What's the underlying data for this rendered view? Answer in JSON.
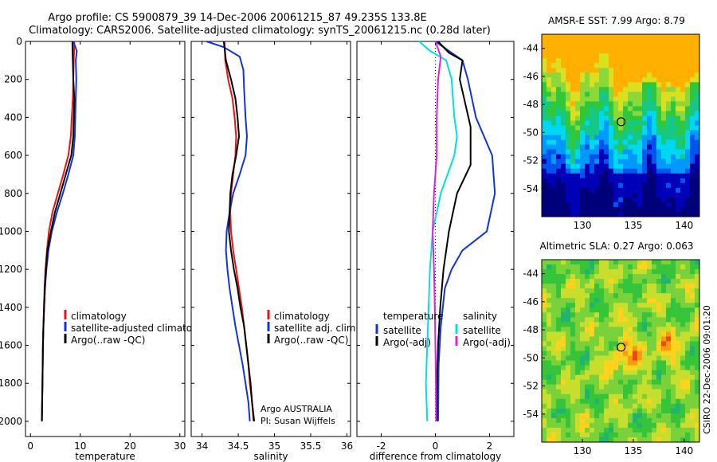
{
  "figure": {
    "title_line1": "Argo profile: CS 5900879_39 14-Dec-2006 20061215_87 49.235S 133.8E",
    "title_line2": "Climatology: CARS2006. Satellite-adjusted climatology: synTS_20061215.nc (0.28d later)",
    "credit": "CSIRO 22-Dec-2006 09:01:20"
  },
  "chart_data": [
    {
      "type": "line",
      "id": "temperature",
      "xlabel": "temperature",
      "ylabel": "",
      "xlim": [
        -1,
        31
      ],
      "ylim": [
        2080,
        0
      ],
      "xticks": [
        0,
        10,
        20,
        30
      ],
      "yticks": [
        0,
        200,
        400,
        600,
        800,
        1000,
        1200,
        1400,
        1600,
        1800,
        2000
      ],
      "legend": {
        "placement": "bottom-right",
        "entries": [
          {
            "label": "climatology",
            "color": "#ee1111"
          },
          {
            "label": "satellite-adjusted climatology",
            "color": "#1133dd"
          },
          {
            "label": "Argo(..raw -QC)",
            "color": "#000000"
          }
        ]
      },
      "series": [
        {
          "name": "climatology",
          "color": "#ee1111",
          "points": [
            [
              8.8,
              0
            ],
            [
              8.7,
              100
            ],
            [
              8.6,
              200
            ],
            [
              8.5,
              300
            ],
            [
              8.3,
              400
            ],
            [
              8.1,
              500
            ],
            [
              7.6,
              600
            ],
            [
              6.6,
              700
            ],
            [
              5.5,
              800
            ],
            [
              4.4,
              900
            ],
            [
              3.7,
              1000
            ],
            [
              3.3,
              1100
            ],
            [
              3.0,
              1200
            ],
            [
              2.8,
              1300
            ],
            [
              2.7,
              1400
            ],
            [
              2.6,
              1500
            ],
            [
              2.5,
              1600
            ],
            [
              2.45,
              1700
            ],
            [
              2.4,
              1800
            ],
            [
              2.35,
              1900
            ],
            [
              2.3,
              2000
            ]
          ]
        },
        {
          "name": "satellite-adjusted climatology",
          "color": "#1133dd",
          "points": [
            [
              8.6,
              0
            ],
            [
              9.3,
              50
            ],
            [
              9.1,
              100
            ],
            [
              9.2,
              200
            ],
            [
              9.1,
              300
            ],
            [
              9.0,
              400
            ],
            [
              8.9,
              500
            ],
            [
              8.6,
              600
            ],
            [
              7.6,
              700
            ],
            [
              6.5,
              800
            ],
            [
              5.3,
              900
            ],
            [
              4.3,
              1000
            ],
            [
              3.6,
              1100
            ],
            [
              3.2,
              1200
            ],
            [
              2.9,
              1300
            ],
            [
              2.75,
              1400
            ],
            [
              2.6,
              1500
            ],
            [
              2.5,
              1600
            ],
            [
              2.45,
              1700
            ],
            [
              2.4,
              1800
            ],
            [
              2.35,
              1900
            ],
            [
              2.3,
              2000
            ]
          ]
        },
        {
          "name": "Argo(..raw -QC)",
          "color": "#000000",
          "points": [
            [
              8.4,
              0
            ],
            [
              8.5,
              100
            ],
            [
              8.6,
              200
            ],
            [
              8.8,
              300
            ],
            [
              8.7,
              400
            ],
            [
              8.6,
              500
            ],
            [
              8.2,
              600
            ],
            [
              7.1,
              700
            ],
            [
              6.0,
              800
            ],
            [
              4.9,
              900
            ],
            [
              4.1,
              1000
            ],
            [
              3.4,
              1100
            ],
            [
              3.1,
              1200
            ],
            [
              2.9,
              1300
            ],
            [
              2.75,
              1400
            ],
            [
              2.6,
              1500
            ],
            [
              2.5,
              1600
            ],
            [
              2.45,
              1700
            ],
            [
              2.4,
              1800
            ],
            [
              2.35,
              1900
            ],
            [
              2.3,
              2000
            ]
          ]
        }
      ]
    },
    {
      "type": "line",
      "id": "salinity",
      "xlabel": "salinity",
      "ylabel": "",
      "xlim": [
        33.85,
        36.05
      ],
      "ylim": [
        2080,
        0
      ],
      "xticks": [
        34,
        34.5,
        35,
        35.5,
        36
      ],
      "yticks": [
        0,
        200,
        400,
        600,
        800,
        1000,
        1200,
        1400,
        1600,
        1800,
        2000
      ],
      "legend": {
        "placement": "bottom-right",
        "entries": [
          {
            "label": "climatology",
            "color": "#ee1111"
          },
          {
            "label": "satellite adj. clim.",
            "color": "#1133dd"
          },
          {
            "label": "Argo(..raw -QC)",
            "color": "#000000"
          }
        ]
      },
      "annotations": [
        "Argo AUSTRALIA",
        "PI: Susan Wijffels"
      ],
      "series": [
        {
          "name": "climatology",
          "color": "#ee1111",
          "points": [
            [
              34.31,
              0
            ],
            [
              34.32,
              100
            ],
            [
              34.36,
              200
            ],
            [
              34.42,
              300
            ],
            [
              34.45,
              400
            ],
            [
              34.47,
              500
            ],
            [
              34.46,
              600
            ],
            [
              34.43,
              700
            ],
            [
              34.4,
              800
            ],
            [
              34.39,
              900
            ],
            [
              34.4,
              1000
            ],
            [
              34.43,
              1100
            ],
            [
              34.47,
              1200
            ],
            [
              34.51,
              1300
            ],
            [
              34.55,
              1400
            ],
            [
              34.58,
              1500
            ],
            [
              34.61,
              1600
            ],
            [
              34.64,
              1700
            ],
            [
              34.66,
              1800
            ],
            [
              34.69,
              1900
            ],
            [
              34.71,
              2000
            ]
          ]
        },
        {
          "name": "satellite adj. clim.",
          "color": "#1133dd",
          "points": [
            [
              34.06,
              0
            ],
            [
              34.3,
              30
            ],
            [
              34.52,
              80
            ],
            [
              34.57,
              150
            ],
            [
              34.58,
              250
            ],
            [
              34.6,
              400
            ],
            [
              34.62,
              500
            ],
            [
              34.6,
              600
            ],
            [
              34.52,
              700
            ],
            [
              34.43,
              800
            ],
            [
              34.38,
              900
            ],
            [
              34.34,
              1000
            ],
            [
              34.33,
              1100
            ],
            [
              34.35,
              1200
            ],
            [
              34.38,
              1300
            ],
            [
              34.42,
              1400
            ],
            [
              34.46,
              1500
            ],
            [
              34.51,
              1600
            ],
            [
              34.56,
              1700
            ],
            [
              34.6,
              1800
            ],
            [
              34.64,
              1900
            ],
            [
              34.66,
              2000
            ]
          ]
        },
        {
          "name": "Argo(..raw -QC)",
          "color": "#000000",
          "points": [
            [
              34.3,
              0
            ],
            [
              34.33,
              100
            ],
            [
              34.4,
              200
            ],
            [
              34.46,
              300
            ],
            [
              34.49,
              400
            ],
            [
              34.51,
              500
            ],
            [
              34.47,
              600
            ],
            [
              34.42,
              700
            ],
            [
              34.39,
              800
            ],
            [
              34.38,
              900
            ],
            [
              34.37,
              1000
            ],
            [
              34.4,
              1100
            ],
            [
              34.44,
              1200
            ],
            [
              34.49,
              1300
            ],
            [
              34.53,
              1400
            ],
            [
              34.58,
              1500
            ],
            [
              34.61,
              1600
            ],
            [
              34.64,
              1700
            ],
            [
              34.67,
              1800
            ],
            [
              34.69,
              1900
            ],
            [
              34.72,
              2000
            ]
          ]
        }
      ]
    },
    {
      "type": "line",
      "id": "difference",
      "xlabel": "difference from climatology",
      "ylabel": "",
      "xlim": [
        -2.9,
        2.9
      ],
      "ylim": [
        2080,
        0
      ],
      "xticks": [
        -2,
        0,
        2
      ],
      "yticks": [
        0,
        200,
        400,
        600,
        800,
        1000,
        1200,
        1400,
        1600,
        1800,
        2000
      ],
      "zero_line": true,
      "legend": {
        "placement": "bottom-right",
        "groups": [
          {
            "heading": "temperature",
            "entries": [
              {
                "label": "satellite",
                "color": "#1133dd"
              },
              {
                "label": "Argo(-adj)",
                "color": "#000000"
              }
            ]
          },
          {
            "heading": "salinity",
            "entries": [
              {
                "label": "satellite",
                "color": "#00e0e0"
              },
              {
                "label": "Argo(-adj)",
                "color": "#dd22dd"
              }
            ]
          }
        ]
      },
      "series": [
        {
          "name": "temperature satellite",
          "color": "#1133dd",
          "points": [
            [
              0.0,
              0
            ],
            [
              0.6,
              60
            ],
            [
              1.0,
              100
            ],
            [
              1.2,
              200
            ],
            [
              1.5,
              400
            ],
            [
              2.1,
              600
            ],
            [
              2.2,
              800
            ],
            [
              1.9,
              1000
            ],
            [
              1.0,
              1100
            ],
            [
              0.6,
              1200
            ],
            [
              0.35,
              1300
            ],
            [
              0.2,
              1500
            ],
            [
              0.12,
              1700
            ],
            [
              0.1,
              2000
            ]
          ]
        },
        {
          "name": "temperature Argo(-adj)",
          "color": "#000000",
          "points": [
            [
              0.1,
              0
            ],
            [
              0.5,
              60
            ],
            [
              1.0,
              100
            ],
            [
              0.9,
              200
            ],
            [
              1.3,
              450
            ],
            [
              1.3,
              650
            ],
            [
              0.8,
              800
            ],
            [
              0.5,
              1000
            ],
            [
              0.3,
              1200
            ],
            [
              0.18,
              1400
            ],
            [
              0.1,
              1600
            ],
            [
              0.06,
              1800
            ],
            [
              0.05,
              2000
            ]
          ]
        },
        {
          "name": "salinity satellite",
          "color": "#00e0e0",
          "points": [
            [
              -0.6,
              0
            ],
            [
              -0.2,
              50
            ],
            [
              0.4,
              100
            ],
            [
              0.6,
              200
            ],
            [
              0.7,
              400
            ],
            [
              0.8,
              500
            ],
            [
              0.7,
              600
            ],
            [
              0.2,
              800
            ],
            [
              -0.1,
              1000
            ],
            [
              -0.2,
              1200
            ],
            [
              -0.25,
              1400
            ],
            [
              -0.3,
              1600
            ],
            [
              -0.35,
              1800
            ],
            [
              -0.3,
              2000
            ]
          ]
        },
        {
          "name": "salinity Argo(-adj)",
          "color": "#dd22dd",
          "points": [
            [
              0.0,
              0
            ],
            [
              0.2,
              80
            ],
            [
              0.1,
              200
            ],
            [
              0.05,
              400
            ],
            [
              0.05,
              600
            ],
            [
              -0.05,
              800
            ],
            [
              -0.1,
              1000
            ],
            [
              -0.05,
              1200
            ],
            [
              -0.02,
              1400
            ],
            [
              0.0,
              1600
            ],
            [
              0.02,
              1800
            ],
            [
              0.03,
              2000
            ]
          ]
        }
      ]
    },
    {
      "type": "heatmap",
      "id": "sst",
      "title": "AMSR-E SST: 7.99 Argo: 8.79",
      "xlim": [
        126,
        141.5
      ],
      "ylim": [
        -56,
        -43
      ],
      "xticks": [
        130,
        135,
        140
      ],
      "yticks": [
        -44,
        -46,
        -48,
        -50,
        -52,
        -54
      ],
      "marker": {
        "lon": 133.8,
        "lat": -49.235
      },
      "colors": [
        "#00007a",
        "#0000b8",
        "#0055ee",
        "#0099ff",
        "#00d8f0",
        "#16c886",
        "#2ec83a",
        "#8cd83a",
        "#d8e020",
        "#ffb000"
      ]
    },
    {
      "type": "heatmap",
      "id": "sla",
      "title": "Altimetric SLA: 0.27 Argo: 0.063",
      "xlim": [
        126,
        141.5
      ],
      "ylim": [
        -56,
        -43
      ],
      "xticks": [
        130,
        135,
        140
      ],
      "yticks": [
        -44,
        -46,
        -48,
        -50,
        -52,
        -54
      ],
      "marker": {
        "lon": 133.8,
        "lat": -49.235
      },
      "colors": [
        "#0a8c8c",
        "#22b46e",
        "#36c43a",
        "#7ad23a",
        "#c8de2c",
        "#ffd21e",
        "#ff9a10",
        "#e84a10"
      ]
    }
  ]
}
